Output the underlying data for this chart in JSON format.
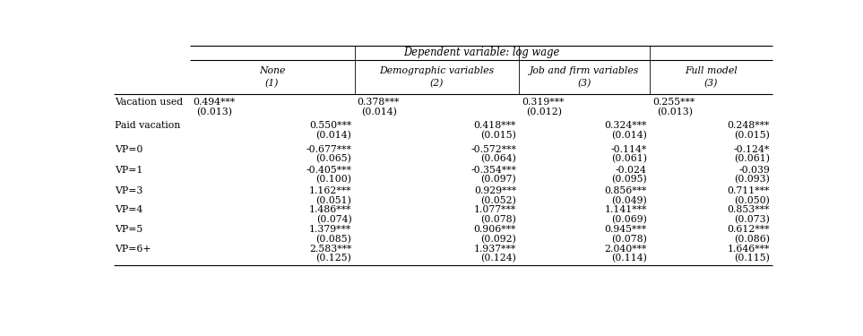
{
  "title": "Dependent variable: log wage",
  "col_headers": [
    [
      "None",
      "(1)"
    ],
    [
      "Demographic variables",
      "(2)"
    ],
    [
      "Job and firm variables",
      "(3)"
    ],
    [
      "Full model",
      "(3)"
    ]
  ],
  "row_labels": [
    "Vacation used",
    "Paid vacation",
    "VP=0",
    "VP=1",
    "VP=3",
    "VP=4",
    "VP=5",
    "VP=6+"
  ],
  "cells": {
    "Vacation used": [
      [
        "0.494***",
        "(0.013)"
      ],
      [
        "0.378***",
        "(0.014)"
      ],
      [
        "0.319***",
        "(0.012)"
      ],
      [
        "0.255***",
        "(0.013)"
      ]
    ],
    "Paid vacation": [
      [
        "0.550***",
        "(0.014)"
      ],
      [
        "0.418***",
        "(0.015)"
      ],
      [
        "0.324***",
        "(0.014)"
      ],
      [
        "0.248***",
        "(0.015)"
      ]
    ],
    "VP=0": [
      [
        "-0.677***",
        "(0.065)"
      ],
      [
        "-0.572***",
        "(0.064)"
      ],
      [
        "-0.114*",
        "(0.061)"
      ],
      [
        "-0.124*",
        "(0.061)"
      ]
    ],
    "VP=1": [
      [
        "-0.405***",
        "(0.100)"
      ],
      [
        "-0.354***",
        "(0.097)"
      ],
      [
        "-0.024",
        "(0.095)"
      ],
      [
        "-0.039",
        "(0.093)"
      ]
    ],
    "VP=3": [
      [
        "1.162***",
        "(0.051)"
      ],
      [
        "0.929***",
        "(0.052)"
      ],
      [
        "0.856***",
        "(0.049)"
      ],
      [
        "0.711***",
        "(0.050)"
      ]
    ],
    "VP=4": [
      [
        "1.486***",
        "(0.074)"
      ],
      [
        "1.077***",
        "(0.078)"
      ],
      [
        "1.141***",
        "(0.069)"
      ],
      [
        "0.853***",
        "(0.073)"
      ]
    ],
    "VP=5": [
      [
        "1.379***",
        "(0.085)"
      ],
      [
        "0.906***",
        "(0.092)"
      ],
      [
        "0.945***",
        "(0.078)"
      ],
      [
        "0.612***",
        "(0.086)"
      ]
    ],
    "VP=6+": [
      [
        "2.583***",
        "(0.125)"
      ],
      [
        "1.937***",
        "(0.124)"
      ],
      [
        "2.040***",
        "(0.114)"
      ],
      [
        "1.646***",
        "(0.115)"
      ]
    ]
  },
  "background_color": "#ffffff",
  "text_color": "#000000",
  "font_size": 7.8
}
